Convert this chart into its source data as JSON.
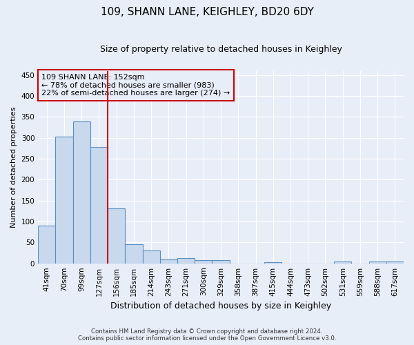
{
  "title": "109, SHANN LANE, KEIGHLEY, BD20 6DY",
  "subtitle": "Size of property relative to detached houses in Keighley",
  "xlabel": "Distribution of detached houses by size in Keighley",
  "ylabel": "Number of detached properties",
  "categories": [
    "41sqm",
    "70sqm",
    "99sqm",
    "127sqm",
    "156sqm",
    "185sqm",
    "214sqm",
    "243sqm",
    "271sqm",
    "300sqm",
    "329sqm",
    "358sqm",
    "387sqm",
    "415sqm",
    "444sqm",
    "473sqm",
    "502sqm",
    "531sqm",
    "559sqm",
    "588sqm",
    "617sqm"
  ],
  "values": [
    90,
    303,
    340,
    278,
    131,
    46,
    31,
    10,
    12,
    7,
    8,
    0,
    0,
    3,
    0,
    0,
    0,
    4,
    0,
    5,
    4
  ],
  "bar_color": "#c8d9ed",
  "bar_edge_color": "#5a8fc0",
  "vline_idx": 4,
  "annotation_line1": "109 SHANN LANE: 152sqm",
  "annotation_line2": "← 78% of detached houses are smaller (983)",
  "annotation_line3": "22% of semi-detached houses are larger (274) →",
  "annotation_box_color": "#cc0000",
  "ylim": [
    0,
    460
  ],
  "yticks": [
    0,
    50,
    100,
    150,
    200,
    250,
    300,
    350,
    400,
    450
  ],
  "footnote1": "Contains HM Land Registry data © Crown copyright and database right 2024.",
  "footnote2": "Contains public sector information licensed under the Open Government Licence v3.0.",
  "bg_color": "#e8eef8",
  "grid_color": "#ffffff",
  "title_fontsize": 11,
  "subtitle_fontsize": 9,
  "tick_fontsize": 7.5,
  "ylabel_fontsize": 8,
  "xlabel_fontsize": 9
}
